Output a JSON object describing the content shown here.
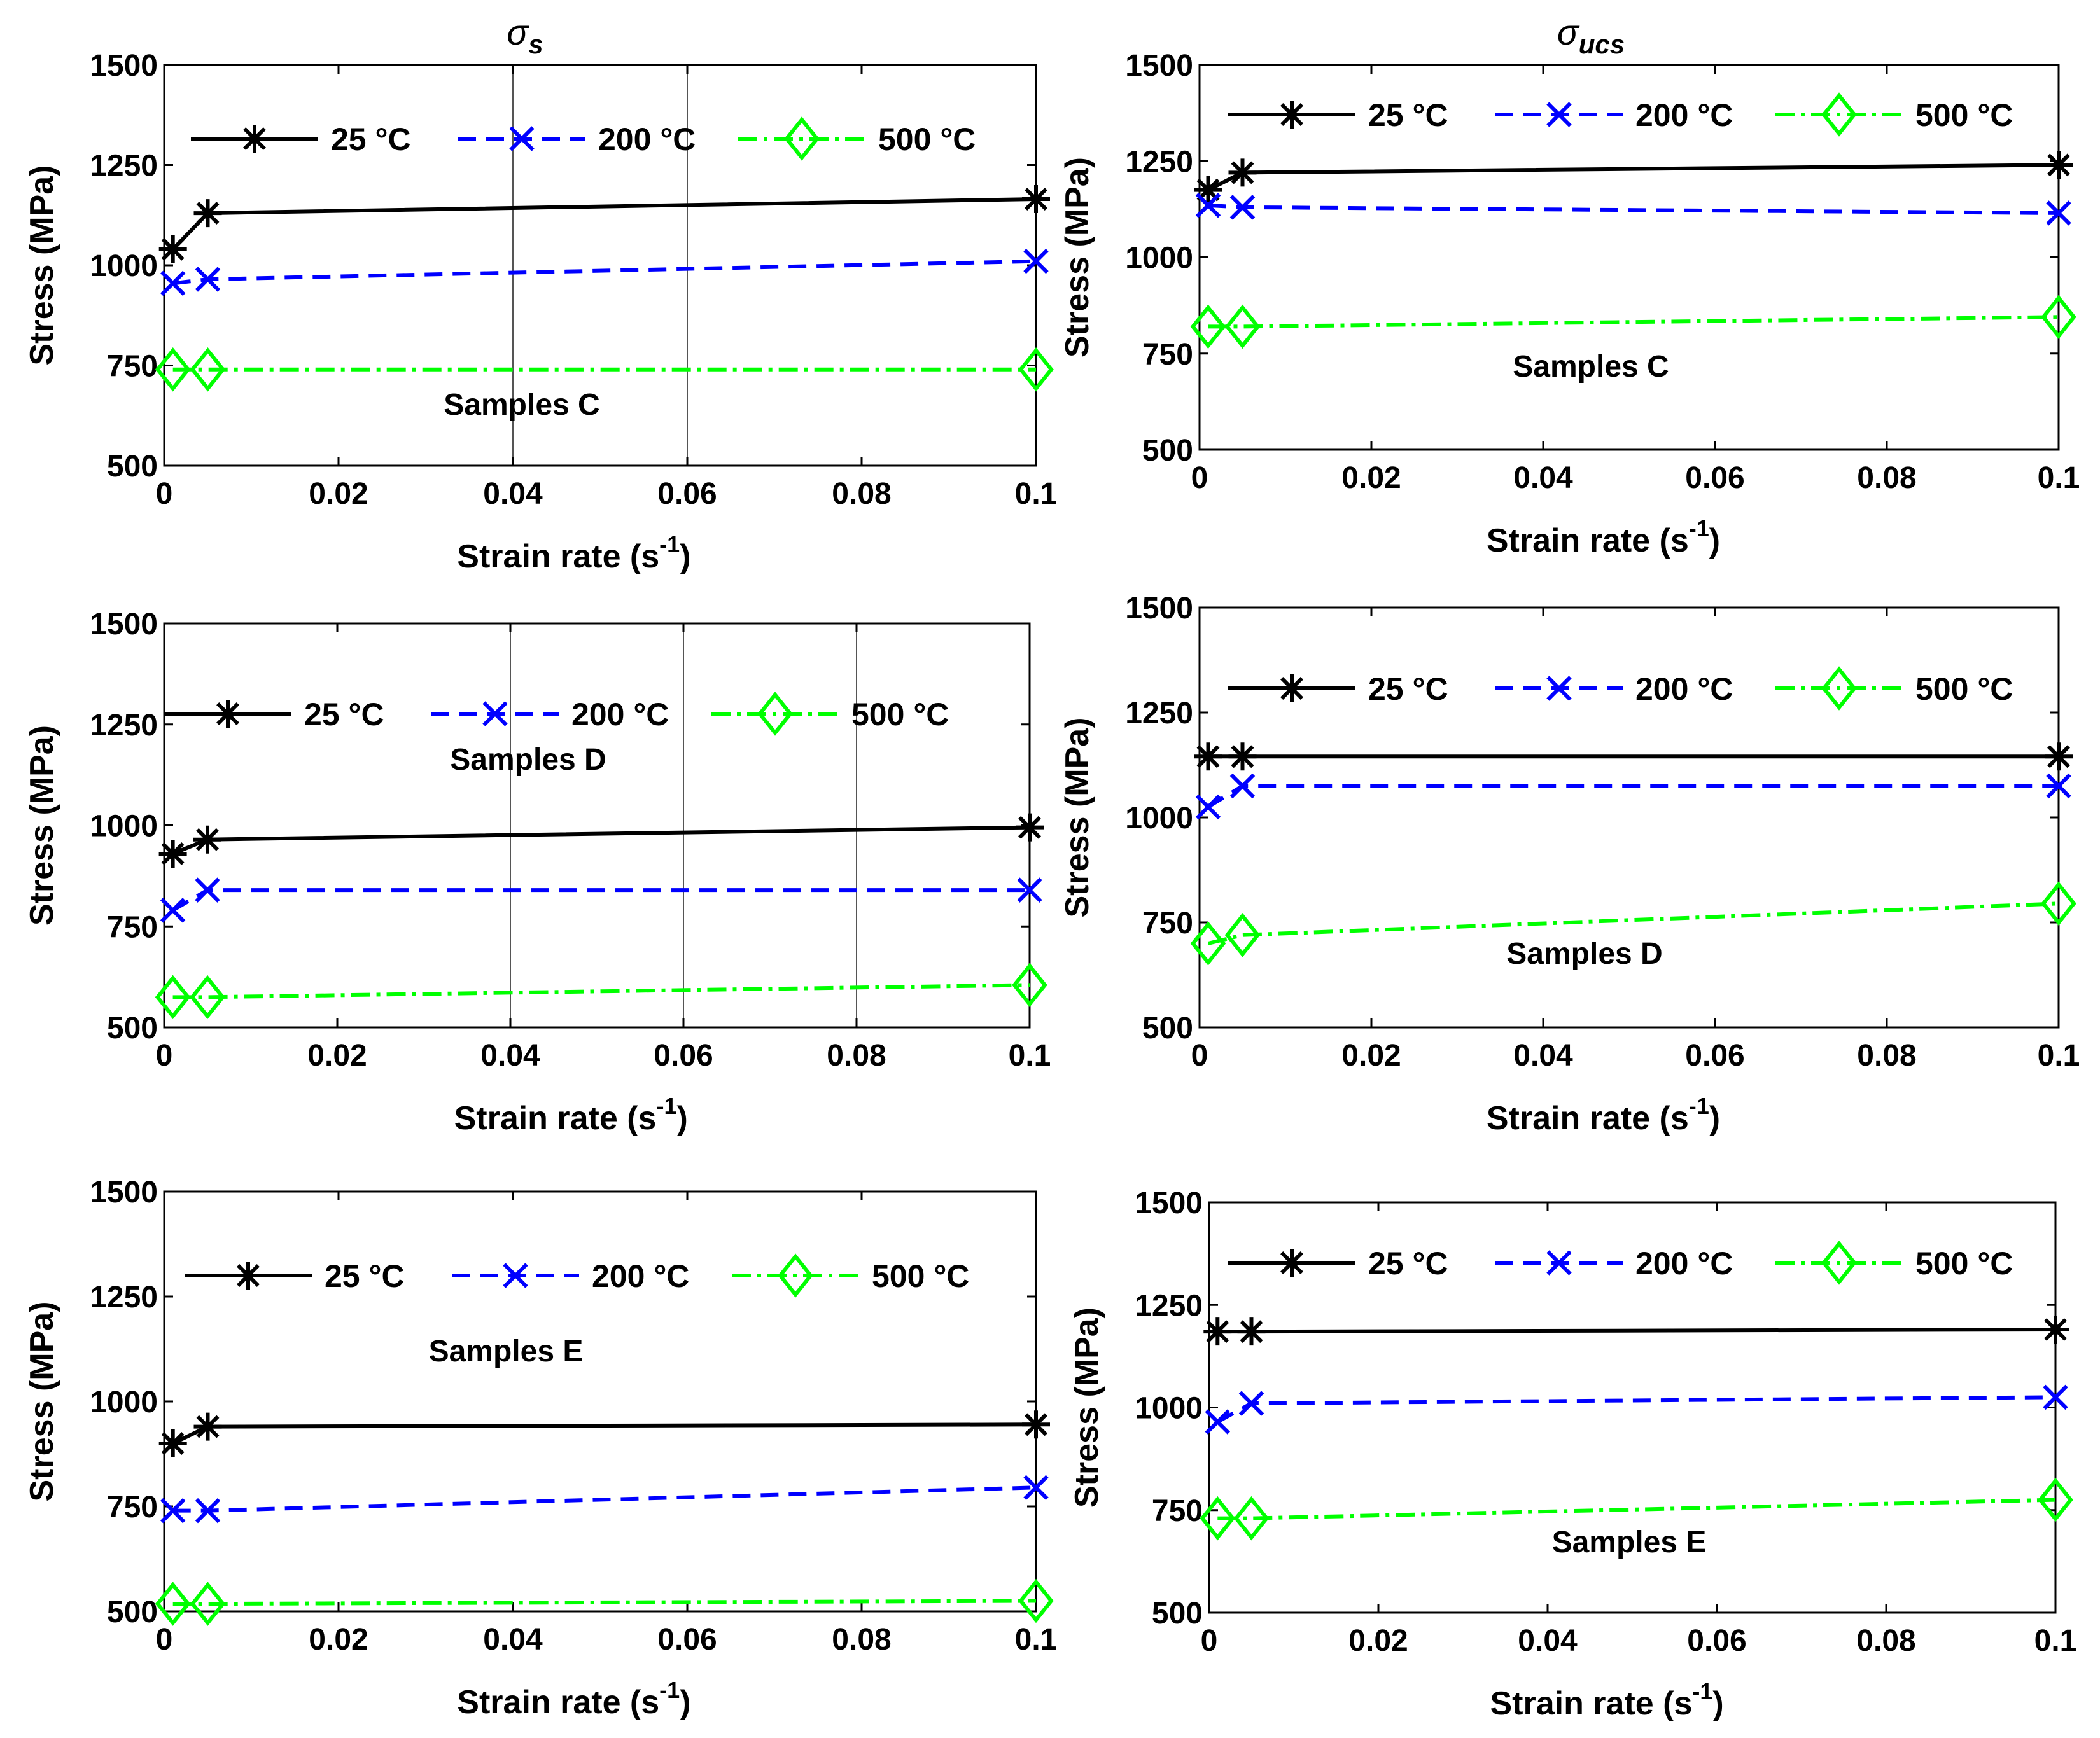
{
  "figure": {
    "column_titles": [
      {
        "symbol": "σ",
        "subscript": "s"
      },
      {
        "symbol": "σ",
        "subscript": "ucs"
      }
    ]
  },
  "colors": {
    "25": "#000000",
    "200": "#0000ff",
    "500": "#00ff00"
  },
  "chart_data": [
    {
      "id": "sigma-s-C",
      "type": "line",
      "annotation": "Samples C",
      "xlabel": "Strain rate",
      "xlabel_unit": "(s",
      "xlabel_sup": "-1",
      "xlabel_close": ")",
      "ylabel": "Stress (MPa)",
      "xlim": [
        0,
        0.1
      ],
      "ylim": [
        500,
        1500
      ],
      "xticks": [
        "0",
        "0.02",
        "0.04",
        "0.06",
        "0.08",
        "0.1"
      ],
      "yticks": [
        "500",
        "750",
        "1000",
        "1250",
        "1500"
      ],
      "x": [
        0.001,
        0.005,
        0.1
      ],
      "series": [
        {
          "name": "25 °C",
          "marker": "star",
          "values": [
            1040,
            1130,
            1165
          ]
        },
        {
          "name": "200 °C",
          "marker": "x",
          "values": [
            955,
            965,
            1010
          ]
        },
        {
          "name": "500 °C",
          "marker": "diamond",
          "values": [
            740,
            740,
            740
          ]
        }
      ],
      "gridlines_x": [
        0.04,
        0.06
      ],
      "gridlines_y": []
    },
    {
      "id": "sigma-ucs-C",
      "type": "line",
      "annotation": "Samples C",
      "xlabel": "Strain rate",
      "xlabel_unit": "(s",
      "xlabel_sup": "-1",
      "xlabel_close": ")",
      "ylabel": "Stress (MPa)",
      "xlim": [
        0,
        0.1
      ],
      "ylim": [
        500,
        1500
      ],
      "xticks": [
        "0",
        "0.02",
        "0.04",
        "0.06",
        "0.08",
        "0.1"
      ],
      "yticks": [
        "500",
        "750",
        "1000",
        "1250",
        "1500"
      ],
      "x": [
        0.001,
        0.005,
        0.1
      ],
      "series": [
        {
          "name": "25 °C",
          "marker": "star",
          "values": [
            1175,
            1220,
            1240
          ]
        },
        {
          "name": "200 °C",
          "marker": "x",
          "values": [
            1135,
            1130,
            1115
          ]
        },
        {
          "name": "500 °C",
          "marker": "diamond",
          "values": [
            820,
            820,
            845
          ]
        }
      ],
      "gridlines_x": [],
      "gridlines_y": []
    },
    {
      "id": "sigma-s-D",
      "type": "line",
      "annotation": "Samples D",
      "xlabel": "Strain rate",
      "xlabel_unit": "(s",
      "xlabel_sup": "-1",
      "xlabel_close": ")",
      "ylabel": "Stress (MPa)",
      "xlim": [
        0,
        0.1
      ],
      "ylim": [
        500,
        1500
      ],
      "xticks": [
        "0",
        "0.02",
        "0.04",
        "0.06",
        "0.08",
        "0.1"
      ],
      "yticks": [
        "500",
        "750",
        "1000",
        "1250",
        "1500"
      ],
      "x": [
        0.001,
        0.005,
        0.1
      ],
      "series": [
        {
          "name": "25 °C",
          "marker": "star",
          "values": [
            930,
            965,
            995
          ]
        },
        {
          "name": "200 °C",
          "marker": "x",
          "values": [
            790,
            840,
            840
          ]
        },
        {
          "name": "500 °C",
          "marker": "diamond",
          "values": [
            575,
            575,
            605
          ]
        }
      ],
      "gridlines_x": [
        0.04,
        0.06,
        0.08
      ],
      "gridlines_y": []
    },
    {
      "id": "sigma-ucs-D",
      "type": "line",
      "annotation": "Samples D",
      "xlabel": "Strain rate",
      "xlabel_unit": "(s",
      "xlabel_sup": "-1",
      "xlabel_close": ")",
      "ylabel": "Stress (MPa)",
      "xlim": [
        0,
        0.1
      ],
      "ylim": [
        500,
        1500
      ],
      "xticks": [
        "0",
        "0.02",
        "0.04",
        "0.06",
        "0.08",
        "0.1"
      ],
      "yticks": [
        "500",
        "750",
        "1000",
        "1250",
        "1500"
      ],
      "x": [
        0.001,
        0.005,
        0.1
      ],
      "series": [
        {
          "name": "25 °C",
          "marker": "star",
          "values": [
            1145,
            1145,
            1145
          ]
        },
        {
          "name": "200 °C",
          "marker": "x",
          "values": [
            1025,
            1075,
            1075
          ]
        },
        {
          "name": "500 °C",
          "marker": "diamond",
          "values": [
            700,
            720,
            795
          ]
        }
      ],
      "gridlines_x": [],
      "gridlines_y": []
    },
    {
      "id": "sigma-s-E",
      "type": "line",
      "annotation": "Samples E",
      "xlabel": "Strain rate",
      "xlabel_unit": "(s",
      "xlabel_sup": "-1",
      "xlabel_close": ")",
      "ylabel": "Stress (MPa)",
      "xlim": [
        0,
        0.1
      ],
      "ylim": [
        500,
        1500
      ],
      "xticks": [
        "0",
        "0.02",
        "0.04",
        "0.06",
        "0.08",
        "0.1"
      ],
      "yticks": [
        "500",
        "750",
        "1000",
        "1250",
        "1500"
      ],
      "x": [
        0.001,
        0.005,
        0.1
      ],
      "series": [
        {
          "name": "25 °C",
          "marker": "star",
          "values": [
            900,
            940,
            945
          ]
        },
        {
          "name": "200 °C",
          "marker": "x",
          "values": [
            740,
            740,
            795
          ]
        },
        {
          "name": "500 °C",
          "marker": "diamond",
          "values": [
            518,
            518,
            525
          ]
        }
      ],
      "gridlines_x": [],
      "gridlines_y": []
    },
    {
      "id": "sigma-ucs-E",
      "type": "line",
      "annotation": "Samples E",
      "xlabel": "Strain rate",
      "xlabel_unit": "(s",
      "xlabel_sup": "-1",
      "xlabel_close": ")",
      "ylabel": "Stress (MPa)",
      "xlim": [
        0,
        0.1
      ],
      "ylim": [
        500,
        1500
      ],
      "xticks": [
        "0",
        "0.02",
        "0.04",
        "0.06",
        "0.08",
        "0.1"
      ],
      "yticks": [
        "500",
        "750",
        "1000",
        "1250",
        "1500"
      ],
      "x": [
        0.001,
        0.005,
        0.1
      ],
      "series": [
        {
          "name": "25 °C",
          "marker": "star",
          "values": [
            1185,
            1185,
            1190
          ]
        },
        {
          "name": "200 °C",
          "marker": "x",
          "values": [
            965,
            1010,
            1025
          ]
        },
        {
          "name": "500 °C",
          "marker": "diamond",
          "values": [
            730,
            730,
            775
          ]
        }
      ],
      "gridlines_x": [],
      "gridlines_y": []
    }
  ]
}
